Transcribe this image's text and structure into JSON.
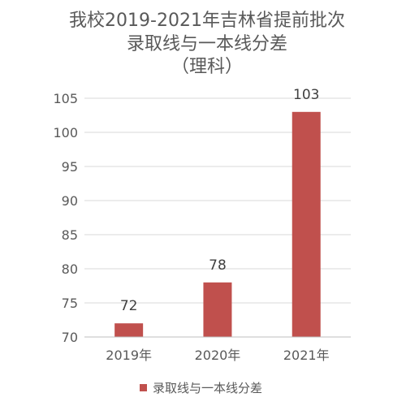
{
  "chart_data": {
    "type": "bar",
    "title_lines": [
      "我校2019-2021年吉林省提前批次",
      "录取线与一本线分差",
      "（理科）"
    ],
    "categories": [
      "2019年",
      "2020年",
      "2021年"
    ],
    "series": [
      {
        "name": "录取线与一本线分差",
        "values": [
          72,
          78,
          103
        ],
        "color": "#C0504D"
      }
    ],
    "data_labels": [
      "72",
      "78",
      "103"
    ],
    "y_ticks": [
      70,
      75,
      80,
      85,
      90,
      95,
      100,
      105
    ],
    "ylim": [
      70,
      105
    ],
    "grid": true,
    "legend": "bottom",
    "colors": {
      "bar": "#C0504D",
      "grid": "#D9D9D9",
      "axis": "#BFBFBF",
      "text": "#595959"
    }
  }
}
